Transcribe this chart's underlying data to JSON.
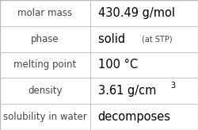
{
  "rows": [
    {
      "label": "molar mass",
      "value": "430.49 g/mol",
      "type": "plain"
    },
    {
      "label": "phase",
      "value": "solid",
      "type": "phase",
      "suffix": "(at STP)"
    },
    {
      "label": "melting point",
      "value": "100 °C",
      "type": "plain"
    },
    {
      "label": "density",
      "value": "3.61 g/cm",
      "type": "super",
      "super": "3"
    },
    {
      "label": "solubility in water",
      "value": "decomposes",
      "type": "plain"
    }
  ],
  "background_color": "#ffffff",
  "border_color": "#bbbbbb",
  "label_color": "#444444",
  "value_color": "#000000",
  "label_fontsize": 8.5,
  "value_fontsize": 10.5,
  "suffix_fontsize": 7.0,
  "super_fontsize": 7.0,
  "col_split": 0.455,
  "fig_width": 2.5,
  "fig_height": 1.64,
  "dpi": 100
}
